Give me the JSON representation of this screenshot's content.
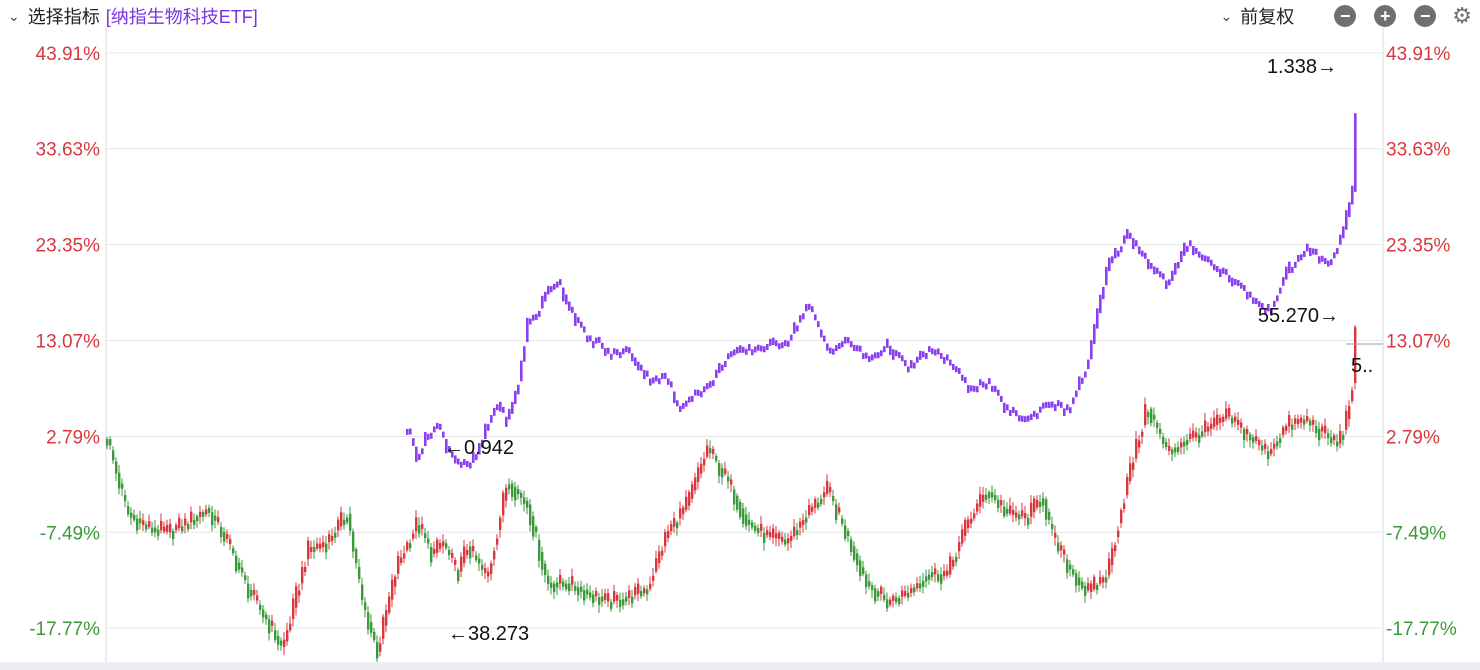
{
  "toolbar": {
    "title": "选择指标",
    "indicator": "[纳指生物科技ETF]",
    "indicator_color": "#7a32e6",
    "adjust_label": "前复权",
    "buttons": [
      "minus-circle-icon",
      "plus-circle-icon",
      "minus-circle-icon",
      "gear-icon"
    ]
  },
  "chart_data": {
    "type": "line",
    "y_ticks": [
      "43.91%",
      "33.63%",
      "23.35%",
      "13.07%",
      "2.79%",
      "-7.49%",
      "-17.77%"
    ],
    "y_tick_values": [
      43.91,
      33.63,
      23.35,
      13.07,
      2.79,
      -7.49,
      -17.77
    ],
    "ylim": [
      -21.4,
      45.5
    ],
    "grid": true,
    "colors": {
      "up": "#d9363e",
      "down": "#3a9a3a",
      "overlay": "#8a3ff0",
      "positive_tick": "#d9363e",
      "negative_tick": "#3a9a3a",
      "grid": "#e4e6ea"
    },
    "series": [
      {
        "role": "main",
        "x": [
          0,
          20,
          40,
          60,
          80,
          100,
          120,
          140,
          160,
          175,
          185,
          200,
          220,
          240,
          255,
          270,
          290,
          310,
          325,
          335,
          350,
          360,
          380,
          400,
          420,
          440,
          460,
          480,
          500,
          520,
          540,
          560,
          580,
          600,
          620,
          640,
          660,
          680,
          700,
          720,
          740,
          760,
          780,
          800,
          820,
          840,
          860,
          880,
          900,
          920,
          935,
          945,
          960,
          980,
          1000,
          1020,
          1040,
          1060,
          1080,
          1100,
          1120,
          1140,
          1160,
          1180,
          1200,
          1210,
          1230,
          1238,
          1245,
          1248
        ],
        "values": [
          2.5,
          -5.5,
          -7,
          -7.5,
          -6.5,
          -5,
          -8.5,
          -13.5,
          -17,
          -20,
          -16,
          -9.5,
          -8.5,
          -5.5,
          -15,
          -20.3,
          -11,
          -6.5,
          -10,
          -8.5,
          -12,
          -9,
          -12.5,
          -2,
          -4.5,
          -13,
          -13,
          -14,
          -15,
          -14.5,
          -13.5,
          -7.5,
          -4.5,
          1.5,
          -2,
          -6.5,
          -8,
          -8.5,
          -5.5,
          -3,
          -8,
          -13,
          -15,
          -14,
          -12,
          -12,
          -6.5,
          -3,
          -5.5,
          -6,
          -3.5,
          -8,
          -11,
          -14,
          -12,
          -2,
          6,
          1,
          2.5,
          3.5,
          5,
          3,
          1,
          4,
          4.5,
          3.5,
          2,
          4,
          8.5,
          13.5
        ],
        "start_label": "",
        "low_label": "←38.273",
        "high_label": "55.270→",
        "last_label": "5.."
      },
      {
        "role": "compare",
        "x": [
          300,
          310,
          320,
          330,
          340,
          350,
          360,
          370,
          380,
          390,
          395,
          400,
          410,
          420,
          430,
          440,
          450,
          460,
          470,
          480,
          490,
          500,
          520,
          540,
          560,
          570,
          580,
          600,
          620,
          640,
          660,
          680,
          700,
          720,
          740,
          760,
          780,
          800,
          820,
          840,
          860,
          880,
          900,
          920,
          940,
          960,
          980,
          990,
          1000,
          1020,
          1040,
          1060,
          1080,
          1100,
          1120,
          1140,
          1160,
          1180,
          1200,
          1220,
          1235,
          1245,
          1248
        ],
        "values": [
          3.5,
          0.5,
          3,
          4,
          1.5,
          0,
          -0.5,
          1,
          4,
          6.5,
          5,
          4.5,
          8,
          15,
          16,
          18.5,
          19.5,
          17,
          15,
          13,
          13,
          11.5,
          12,
          9,
          9,
          5.5,
          7,
          8,
          11.5,
          12,
          12.5,
          13,
          17,
          12,
          13,
          11,
          12.5,
          10,
          12,
          11,
          8,
          8.5,
          5.5,
          4.5,
          6.5,
          5.5,
          10.5,
          16,
          21,
          24.5,
          21.5,
          19,
          23.5,
          21.5,
          20,
          18,
          16,
          20.5,
          23,
          21,
          24.5,
          29,
          37.5
        ],
        "start_label": "←0.942",
        "last_label": "1.338→"
      }
    ]
  }
}
